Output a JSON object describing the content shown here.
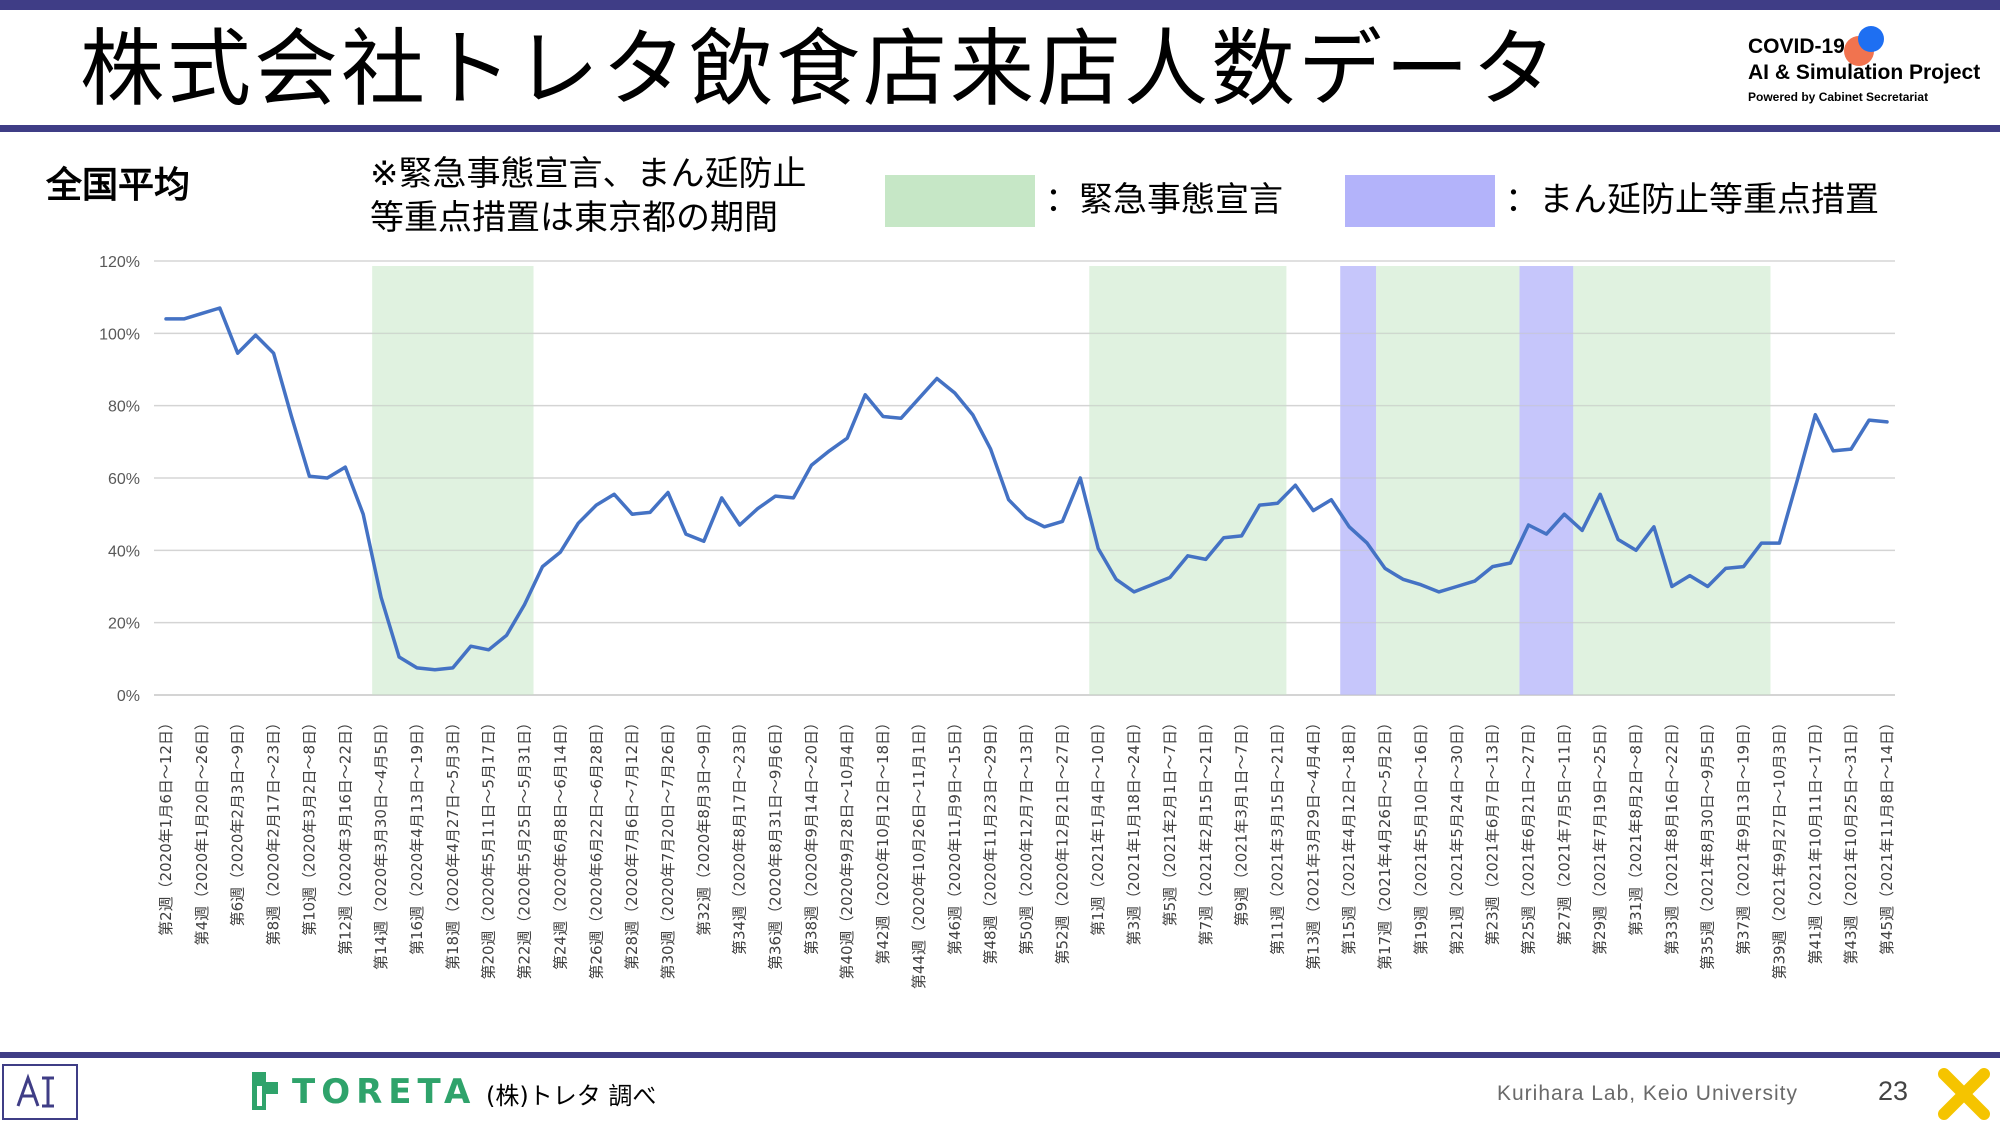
{
  "header": {
    "title": "株式会社トレタ飲食店来店人数データ",
    "project_line1": "COVID-19",
    "project_line2": "AI & Simulation Project",
    "project_line3": "Powered by Cabinet Secretariat"
  },
  "subtitle": "全国平均",
  "note": {
    "line1": "※緊急事態宣言、まん延防止",
    "line2": "等重点措置は東京都の期間"
  },
  "legend": {
    "emergency_label": "：緊急事態宣言",
    "emergency_color": "#c6e7c6",
    "prevention_label": "：まん延防止等重点措置",
    "prevention_color": "#b3b3fa"
  },
  "footer": {
    "logo_text": "TORETA",
    "source": "(株)トレタ 調べ",
    "lab": "Kurihara Lab, Keio University",
    "page_number": "23"
  },
  "chart_data": {
    "type": "line",
    "series_color": "#4472c4",
    "ylim": [
      0,
      120
    ],
    "y_ticks": [
      "0%",
      "20%",
      "40%",
      "60%",
      "80%",
      "100%",
      "120%"
    ],
    "grid": true,
    "tick_labels": [
      "第2週（2020年1月6日～12日）",
      "第4週（2020年1月20日～26日）",
      "第6週（2020年2月3日～9日）",
      "第8週（2020年2月17日～23日）",
      "第10週（2020年3月2日～8日）",
      "第12週（2020年3月16日～22日）",
      "第14週（2020年3月30日～4月5日）",
      "第16週（2020年4月13日～19日）",
      "第18週（2020年4月27日～5月3日）",
      "第20週（2020年5月11日～5月17日）",
      "第22週（2020年5月25日～5月31日）",
      "第24週（2020年6月8日～6月14日）",
      "第26週（2020年6月22日～6月28日）",
      "第28週（2020年7月6日～7月12日）",
      "第30週（2020年7月20日～7月26日）",
      "第32週（2020年8月3日～9日）",
      "第34週（2020年8月17日～23日）",
      "第36週（2020年8月31日～9月6日）",
      "第38週（2020年9月14日～20日）",
      "第40週（2020年9月28日～10月4日）",
      "第42週（2020年10月12日～18日）",
      "第44週（2020年10月26日～11月1日）",
      "第46週（2020年11月9日～15日）",
      "第48週（2020年11月23日～29日）",
      "第50週（2020年12月7日～13日）",
      "第52週（2020年12月21日～27日）",
      "第1週（2021年1月4日～10日）",
      "第3週（2021年1月18日～24日）",
      "第5週（2021年2月1日～7日）",
      "第7週（2021年2月15日～21日）",
      "第9週（2021年3月1日～7日）",
      "第11週（2021年3月15日～21日）",
      "第13週（2021年3月29日～4月4日）",
      "第15週（2021年4月12日～18日）",
      "第17週（2021年4月26日～5月2日）",
      "第19週（2021年5月10日～16日）",
      "第21週（2021年5月24日～30日）",
      "第23週（2021年6月7日～13日）",
      "第25週（2021年6月21日～27日）",
      "第27週（2021年7月5日～11日）",
      "第29週（2021年7月19日～25日）",
      "第31週（2021年8月2日～8日）",
      "第33週（2021年8月16日～22日）",
      "第35週（2021年8月30日～9月5日）",
      "第37週（2021年9月13日～19日）",
      "第39週（2021年9月27日～10月3日）",
      "第41週（2021年10月11日～17日）",
      "第43週（2021年10月25日～31日）",
      "第45週（2021年11月8日～14日）"
    ],
    "series": [
      {
        "values": [
          104,
          104,
          105.5,
          107,
          94.5,
          99.5,
          94.5,
          77,
          60.5,
          60,
          63,
          50,
          27,
          10.5,
          7.5,
          7,
          7.5,
          13.5,
          12.5,
          16.5,
          25,
          35.5,
          39.5,
          47.5,
          52.5,
          55.5,
          50,
          50.5,
          56,
          44.5,
          42.5,
          54.5,
          47,
          51.5,
          55,
          54.5,
          63.5,
          67.5,
          71,
          83,
          77,
          76.5,
          82,
          87.5,
          83.5,
          77.5,
          68,
          54,
          49,
          46.5,
          48,
          60,
          40.5,
          32,
          28.5,
          30.5,
          32.5,
          38.5,
          37.5,
          43.5,
          44,
          52.5,
          53,
          58,
          51,
          54,
          46.5,
          42,
          35,
          32,
          30.5,
          28.5,
          30,
          31.5,
          35.5,
          36.5,
          47,
          44.5,
          50,
          45.5,
          55.5,
          43,
          40,
          46.5,
          30,
          33,
          30,
          35,
          35.5,
          42,
          42,
          59.5,
          77.5,
          67.5,
          68,
          76,
          75.5
        ]
      }
    ],
    "shaded_periods": [
      {
        "kind": "emergency",
        "start_week": "第14週（2020年3月30日～4月5日）",
        "end_week": "第22週（2020年5月25日～5月31日）"
      },
      {
        "kind": "emergency",
        "start_week": "第1週（2021年1月4日～10日）",
        "end_week": "第11週（2021年3月15日～21日）"
      },
      {
        "kind": "prevention",
        "start_week": "第15週（2021年4月12日～18日）",
        "end_week": "第16週（2021年4月19日～25日）"
      },
      {
        "kind": "emergency",
        "start_week": "第17週（2021年4月26日～5月2日）",
        "end_week": "第24週（2021年6月14日～20日）"
      },
      {
        "kind": "prevention",
        "start_week": "第25週（2021年6月21日～27日）",
        "end_week": "第28週（2021年7月12日～18日）"
      },
      {
        "kind": "emergency",
        "start_week": "第29週（2021年7月19日～25日）",
        "end_week": "第39週（2021年9月27日～10月3日）"
      }
    ]
  }
}
